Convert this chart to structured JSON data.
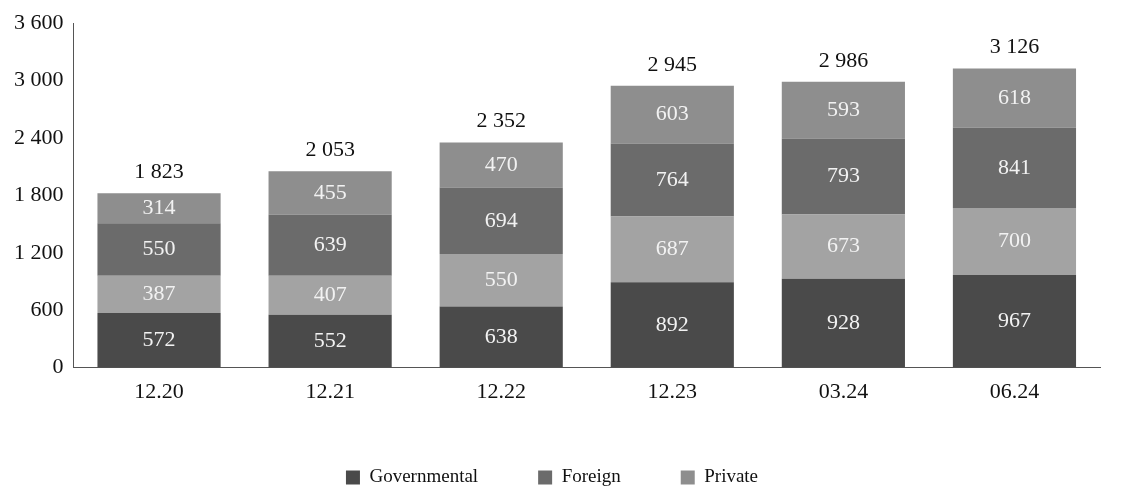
{
  "chart_data": {
    "type": "bar",
    "stacked": true,
    "categories": [
      "12.20",
      "12.21",
      "12.22",
      "12.23",
      "03.24",
      "06.24"
    ],
    "series": [
      {
        "name": "Governmental",
        "color": "#4a4a4a",
        "values": [
          572,
          552,
          638,
          892,
          928,
          967
        ]
      },
      {
        "color": "#a3a3a3",
        "values": [
          387,
          407,
          550,
          687,
          673,
          700
        ]
      },
      {
        "name": "Foreign",
        "color": "#6b6b6b",
        "values": [
          550,
          639,
          694,
          764,
          793,
          841
        ]
      },
      {
        "name": "Private",
        "color": "#8e8e8e",
        "values": [
          314,
          455,
          470,
          603,
          593,
          618
        ]
      }
    ],
    "ylim": [
      0,
      3600
    ],
    "yticks": [
      0,
      600,
      {
        "value": 1200,
        "label": "1 200"
      },
      {
        "value": 1800,
        "label": "1 800"
      },
      {
        "value": 2400,
        "label": "2 400"
      },
      {
        "value": 3000,
        "label": "3 000"
      },
      {
        "value": 3600,
        "label": "3 600"
      }
    ],
    "data_labels": true,
    "totals": [
      "1 823",
      "2 053",
      "2 352",
      "2 945",
      "2 986",
      "3 126"
    ],
    "grid": false,
    "legend": "bottom"
  }
}
